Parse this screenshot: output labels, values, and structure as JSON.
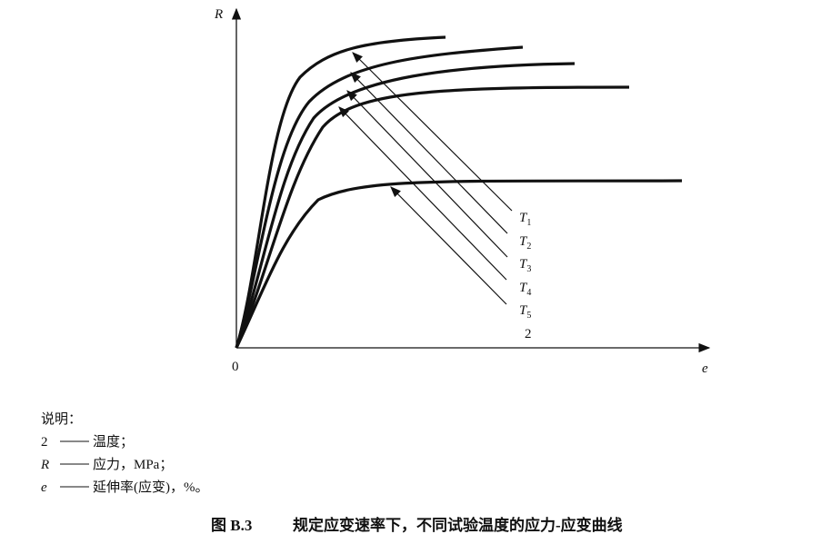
{
  "axes": {
    "y_label": "R",
    "x_label": "e",
    "origin": "0"
  },
  "curve_labels": [
    {
      "letter": "T",
      "index": "1"
    },
    {
      "letter": "T",
      "index": "2"
    },
    {
      "letter": "T",
      "index": "3"
    },
    {
      "letter": "T",
      "index": "4"
    },
    {
      "letter": "T",
      "index": "5"
    }
  ],
  "group_label": "2",
  "legend": {
    "title": "说明：",
    "items": [
      {
        "key": "2",
        "text": "温度；"
      },
      {
        "key": "R",
        "text": "应力，MPa；"
      },
      {
        "key": "e",
        "text": "延伸率(应变)，%。"
      }
    ]
  },
  "caption": {
    "number": "图 B.3",
    "text": "规定应变速率下，不同试验温度的应力-应变曲线"
  }
}
